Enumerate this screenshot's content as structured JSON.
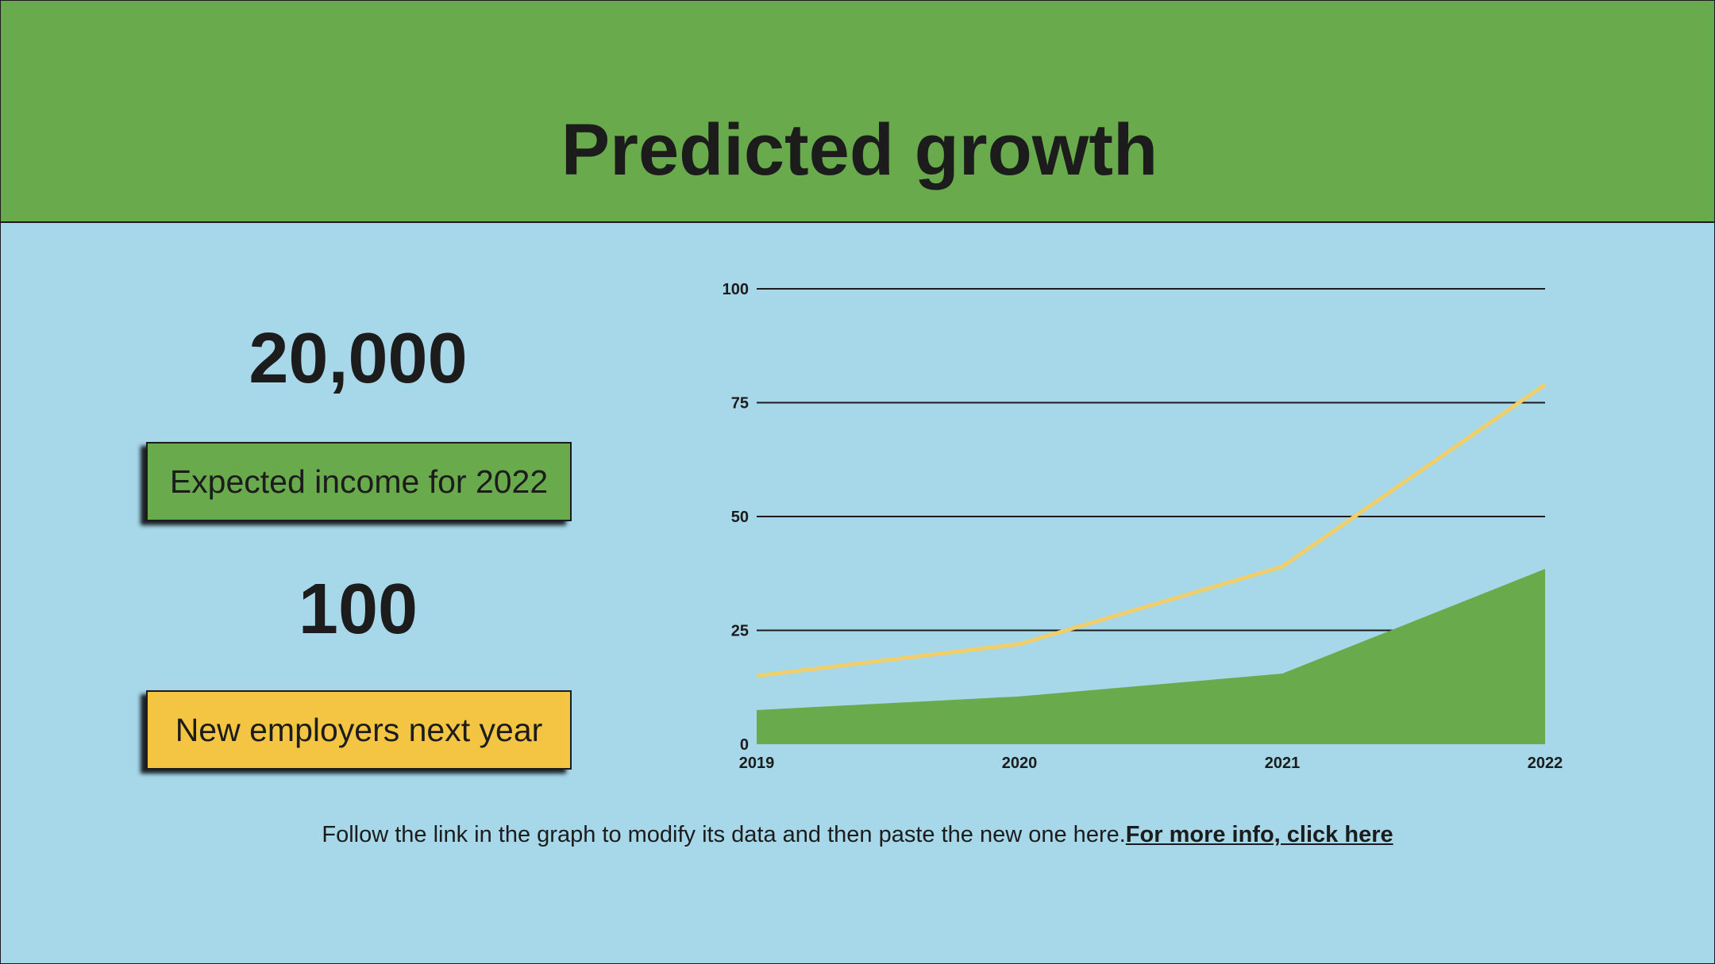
{
  "title": "Predicted growth",
  "kpis": {
    "income_value": "20,000",
    "income_label": "Expected income for 2022",
    "employers_value": "100",
    "employers_label": "New employers next year"
  },
  "footer": {
    "text": "Follow the link in the graph to modify its data and then paste the new one here.",
    "link_text": "For more info, click here"
  },
  "colors": {
    "header": "#68aa4c",
    "background": "#a6d8ea",
    "line_series": "#f0cf6a",
    "area_series": "#68aa4c",
    "text": "#1c1c1c"
  },
  "chart_data": {
    "type": "area",
    "x": [
      "2019",
      "2020",
      "2021",
      "2022"
    ],
    "ylim": [
      0,
      100
    ],
    "yticks": [
      0,
      25,
      50,
      75,
      100
    ],
    "grid": true,
    "series": [
      {
        "type": "area",
        "color": "#68aa4c",
        "values": [
          7.5,
          10.5,
          15.5,
          38.5
        ]
      },
      {
        "type": "line",
        "color": "#f0cf6a",
        "values": [
          15,
          22,
          39,
          79
        ]
      }
    ]
  }
}
